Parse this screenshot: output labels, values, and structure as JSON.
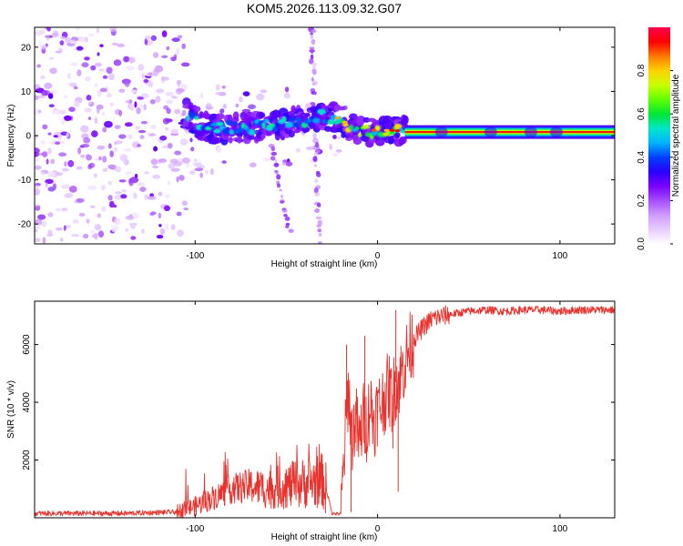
{
  "title": "KOM5.2026.113.09.32.G07",
  "chart_data": [
    {
      "type": "heatmap",
      "name": "spectrogram",
      "xlabel": "Height of straight line (km)",
      "ylabel": "Frequency (Hz)",
      "xlim": [
        -188,
        130
      ],
      "ylim": [
        -24.5,
        24.5
      ],
      "xticks": [
        -100,
        0,
        100
      ],
      "yticks": [
        -20,
        -10,
        0,
        10,
        20
      ],
      "colorbar": {
        "label": "Normalized spectral amplitude",
        "range": [
          0,
          1
        ],
        "ticks": [
          "0.0",
          "0.2",
          "0.4",
          "0.6",
          "0.8"
        ],
        "colors": [
          "#ffffff",
          "#e8ccff",
          "#cf9cff",
          "#a64dff",
          "#7a00ff",
          "#2a00ff",
          "#0040ff",
          "#00b4ff",
          "#00e6c8",
          "#00e632",
          "#64ff00",
          "#c8ff00",
          "#ffd200",
          "#ff7800",
          "#ff0000",
          "#ff0050"
        ]
      },
      "features": {
        "noise_region_x": [
          -188,
          -105
        ],
        "ridge_start_x": -105,
        "ridge_points": [
          [
            -105,
            5
          ],
          [
            -97,
            2.5
          ],
          [
            -90,
            1.2
          ],
          [
            -80,
            2.0
          ],
          [
            -70,
            1.5
          ],
          [
            -60,
            2.5
          ],
          [
            -50,
            2.8
          ],
          [
            -40,
            3.5
          ],
          [
            -30,
            4.5
          ],
          [
            -22,
            4.0
          ],
          [
            -18,
            3.0
          ],
          [
            -12,
            1.5
          ],
          [
            -5,
            0.8
          ],
          [
            0,
            1.5
          ],
          [
            5,
            1.2
          ],
          [
            10,
            1.2
          ],
          [
            15,
            0.8
          ],
          [
            130,
            0.8
          ]
        ],
        "steady_line_start_x": 15,
        "steady_line_freq": 0.8
      }
    },
    {
      "type": "line",
      "name": "snr",
      "xlabel": "Height of straight line (km)",
      "ylabel": "SNR (10 * v/v)",
      "xlim": [
        -188,
        130
      ],
      "ylim": [
        0,
        7500
      ],
      "xticks": [
        -100,
        0,
        100
      ],
      "yticks": [
        2000,
        4000,
        6000
      ],
      "color": "#e8322d",
      "x": [
        -188,
        -140,
        -110,
        -100,
        -90,
        -80,
        -70,
        -60,
        -50,
        -40,
        -30,
        -26,
        -25,
        -22,
        -20,
        -18,
        -16,
        -14,
        -12,
        -10,
        -8,
        -6,
        -4,
        -2,
        0,
        2,
        4,
        6,
        8,
        10,
        12,
        14,
        16,
        18,
        20,
        25,
        30,
        40,
        50,
        60,
        70,
        80,
        90,
        100,
        110,
        120,
        130
      ],
      "y": [
        150,
        150,
        200,
        400,
        700,
        1000,
        1100,
        1000,
        1100,
        1200,
        1300,
        500,
        150,
        130,
        150,
        2500,
        4500,
        2800,
        3500,
        2500,
        3500,
        3200,
        4000,
        3300,
        3800,
        3900,
        4200,
        4500,
        4100,
        4700,
        4800,
        5200,
        5600,
        5900,
        6200,
        6600,
        6900,
        7050,
        7150,
        7200,
        7150,
        7200,
        7200,
        7150,
        7200,
        7200,
        7200
      ],
      "spikes": [
        {
          "x": -17,
          "y": 6000
        },
        {
          "x": -14.5,
          "y": 200
        },
        {
          "x": -7,
          "y": 6300
        },
        {
          "x": 8.5,
          "y": 2400
        },
        {
          "x": 10,
          "y": 7200
        },
        {
          "x": 11.3,
          "y": 900
        }
      ]
    }
  ]
}
